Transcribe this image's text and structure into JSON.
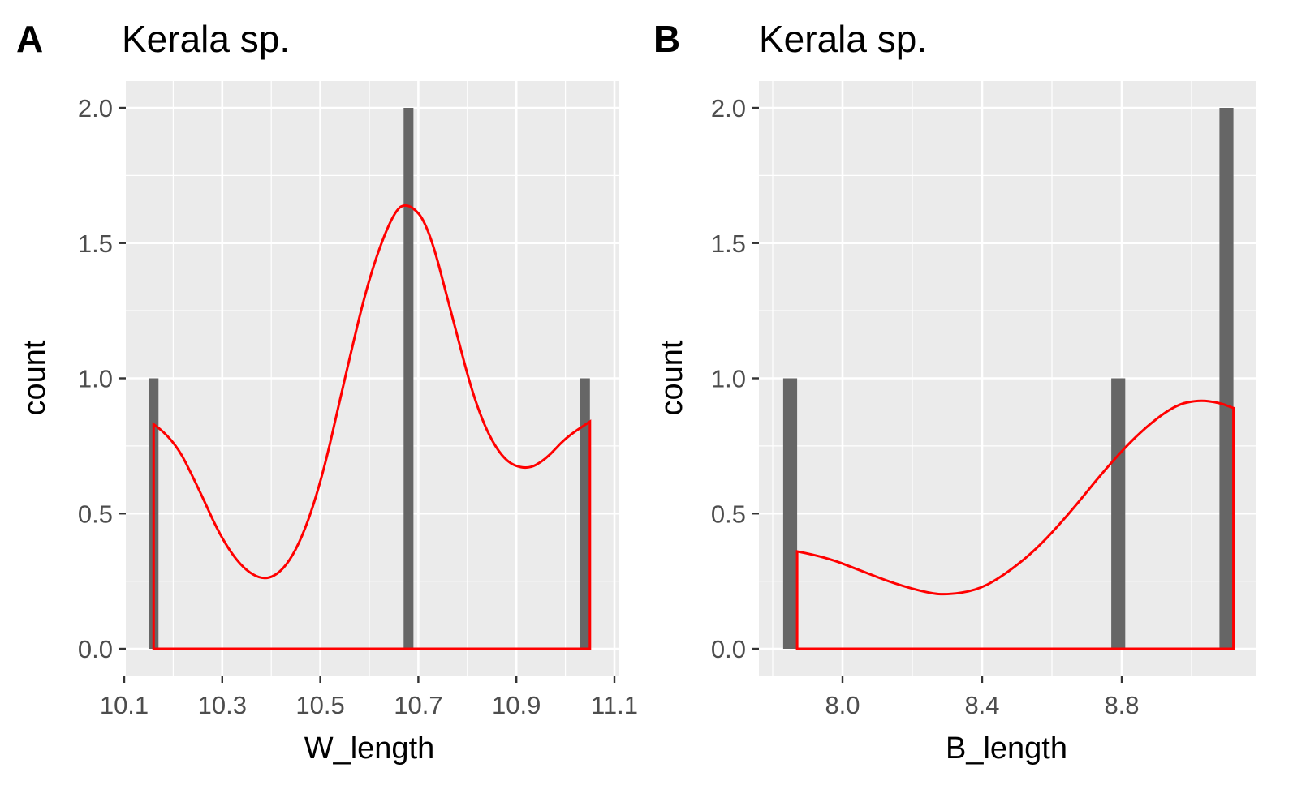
{
  "chart_data": [
    {
      "type": "bar",
      "panel_label": "A",
      "title": "Kerala sp.",
      "xlabel": "W_length",
      "ylabel": "count",
      "xlim": [
        10.1,
        11.1
      ],
      "ylim": [
        0,
        2
      ],
      "x_ticks": [
        "10.1",
        "10.3",
        "10.5",
        "10.7",
        "10.9",
        "11.1"
      ],
      "y_ticks": [
        "0.0",
        "0.5",
        "1.0",
        "1.5",
        "2.0"
      ],
      "bars": [
        {
          "x": 10.16,
          "count": 1
        },
        {
          "x": 10.68,
          "count": 2
        },
        {
          "x": 11.04,
          "count": 1
        }
      ],
      "bar_width": 0.02,
      "bar_color": "#666666",
      "density_color": "#ff0000",
      "density_curve": [
        {
          "x": 10.16,
          "y": 0.83
        },
        {
          "x": 10.2,
          "y": 0.78
        },
        {
          "x": 10.25,
          "y": 0.6
        },
        {
          "x": 10.3,
          "y": 0.4
        },
        {
          "x": 10.35,
          "y": 0.28
        },
        {
          "x": 10.4,
          "y": 0.25
        },
        {
          "x": 10.45,
          "y": 0.35
        },
        {
          "x": 10.5,
          "y": 0.6
        },
        {
          "x": 10.55,
          "y": 1.0
        },
        {
          "x": 10.6,
          "y": 1.38
        },
        {
          "x": 10.65,
          "y": 1.62
        },
        {
          "x": 10.68,
          "y": 1.65
        },
        {
          "x": 10.72,
          "y": 1.57
        },
        {
          "x": 10.77,
          "y": 1.22
        },
        {
          "x": 10.82,
          "y": 0.88
        },
        {
          "x": 10.87,
          "y": 0.7
        },
        {
          "x": 10.92,
          "y": 0.66
        },
        {
          "x": 10.96,
          "y": 0.7
        },
        {
          "x": 11.0,
          "y": 0.78
        },
        {
          "x": 11.05,
          "y": 0.84
        }
      ]
    },
    {
      "type": "bar",
      "panel_label": "B",
      "title": "Kerala sp.",
      "xlabel": "B_length",
      "ylabel": "count",
      "xlim": [
        7.78,
        9.22
      ],
      "ylim": [
        0,
        2
      ],
      "x_ticks": [
        "8.0",
        "8.4",
        "8.8"
      ],
      "x_tick_values": [
        8.0,
        8.4,
        8.8
      ],
      "y_ticks": [
        "0.0",
        "0.5",
        "1.0",
        "1.5",
        "2.0"
      ],
      "bars": [
        {
          "x": 7.85,
          "count": 1
        },
        {
          "x": 8.79,
          "count": 1
        },
        {
          "x": 9.1,
          "count": 2
        }
      ],
      "bar_width": 0.04,
      "bar_color": "#666666",
      "density_color": "#ff0000",
      "density_curve": [
        {
          "x": 7.87,
          "y": 0.36
        },
        {
          "x": 7.95,
          "y": 0.34
        },
        {
          "x": 8.05,
          "y": 0.29
        },
        {
          "x": 8.15,
          "y": 0.24
        },
        {
          "x": 8.25,
          "y": 0.205
        },
        {
          "x": 8.3,
          "y": 0.2
        },
        {
          "x": 8.38,
          "y": 0.215
        },
        {
          "x": 8.45,
          "y": 0.26
        },
        {
          "x": 8.55,
          "y": 0.36
        },
        {
          "x": 8.65,
          "y": 0.5
        },
        {
          "x": 8.75,
          "y": 0.66
        },
        {
          "x": 8.85,
          "y": 0.8
        },
        {
          "x": 8.95,
          "y": 0.9
        },
        {
          "x": 9.02,
          "y": 0.92
        },
        {
          "x": 9.08,
          "y": 0.91
        },
        {
          "x": 9.12,
          "y": 0.89
        }
      ]
    }
  ]
}
